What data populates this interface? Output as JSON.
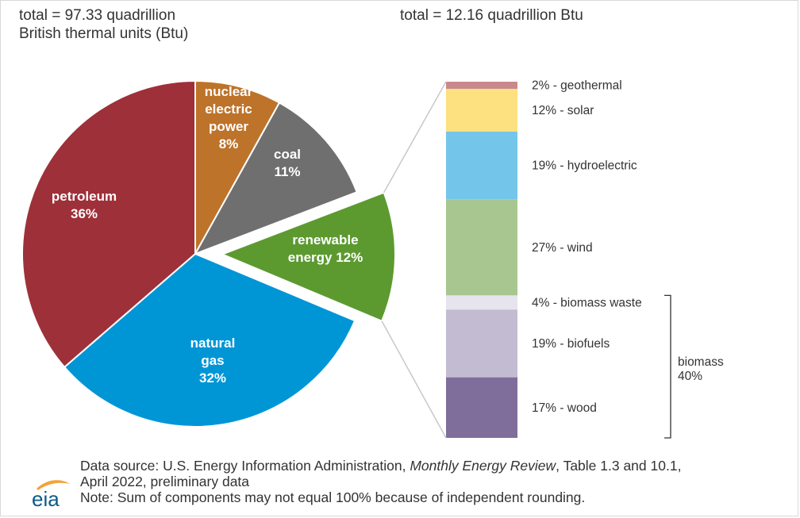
{
  "header": {
    "left_line1": "total = 97.33 quadrillion",
    "left_line2": "British thermal units (Btu)",
    "right": "total = 12.16 quadrillion Btu"
  },
  "chart_data": [
    {
      "type": "pie",
      "total": "total = 97.33 quadrillion British thermal units (Btu)",
      "slices": [
        {
          "label": "nuclear electric power",
          "label_lines": [
            "nuclear",
            "electric",
            "power",
            "8%"
          ],
          "value": 8,
          "color": "#bd732a"
        },
        {
          "label": "coal",
          "label_lines": [
            "coal",
            "11%"
          ],
          "value": 11,
          "color": "#6f6f6f"
        },
        {
          "label": "renewable energy",
          "label_lines": [
            "renewable",
            "energy 12%"
          ],
          "value": 12,
          "color": "#5c9a30",
          "exploded": true
        },
        {
          "label": "natural gas",
          "label_lines": [
            "natural",
            "gas",
            "32%"
          ],
          "value": 32,
          "color": "#0096d6"
        },
        {
          "label": "petroleum",
          "label_lines": [
            "petroleum",
            "36%"
          ],
          "value": 36,
          "color": "#9e3039"
        }
      ]
    },
    {
      "type": "bar",
      "stacked": true,
      "total": "total = 12.16 quadrillion Btu",
      "segments": [
        {
          "label": "2% - geothermal",
          "value": 2,
          "color": "#c9898c"
        },
        {
          "label": "12% - solar",
          "value": 12,
          "color": "#fde07f"
        },
        {
          "label": "19% - hydroelectric",
          "value": 19,
          "color": "#74c5ea"
        },
        {
          "label": "27% - wind",
          "value": 27,
          "color": "#a8c68f"
        },
        {
          "label": "4% - biomass waste",
          "value": 4,
          "color": "#e6e4ec"
        },
        {
          "label": "19% - biofuels",
          "value": 19,
          "color": "#c2bbd2"
        },
        {
          "label": "17% - wood",
          "value": 17,
          "color": "#7f6d9b"
        }
      ],
      "bracket": {
        "label_lines": [
          "biomass",
          "40%"
        ]
      }
    }
  ],
  "footer": {
    "source_prefix": "Data source: U.S. Energy Information Administration, ",
    "source_title": "Monthly Energy Review",
    "source_suffix": ", Table 1.3 and 10.1,",
    "source_line2": "April 2022, preliminary data",
    "note": "Note: Sum of components may not equal 100% because of independent rounding."
  },
  "logo": {
    "text": "eia",
    "color": "#0b5a8a",
    "swoosh": "#f2a33a"
  }
}
